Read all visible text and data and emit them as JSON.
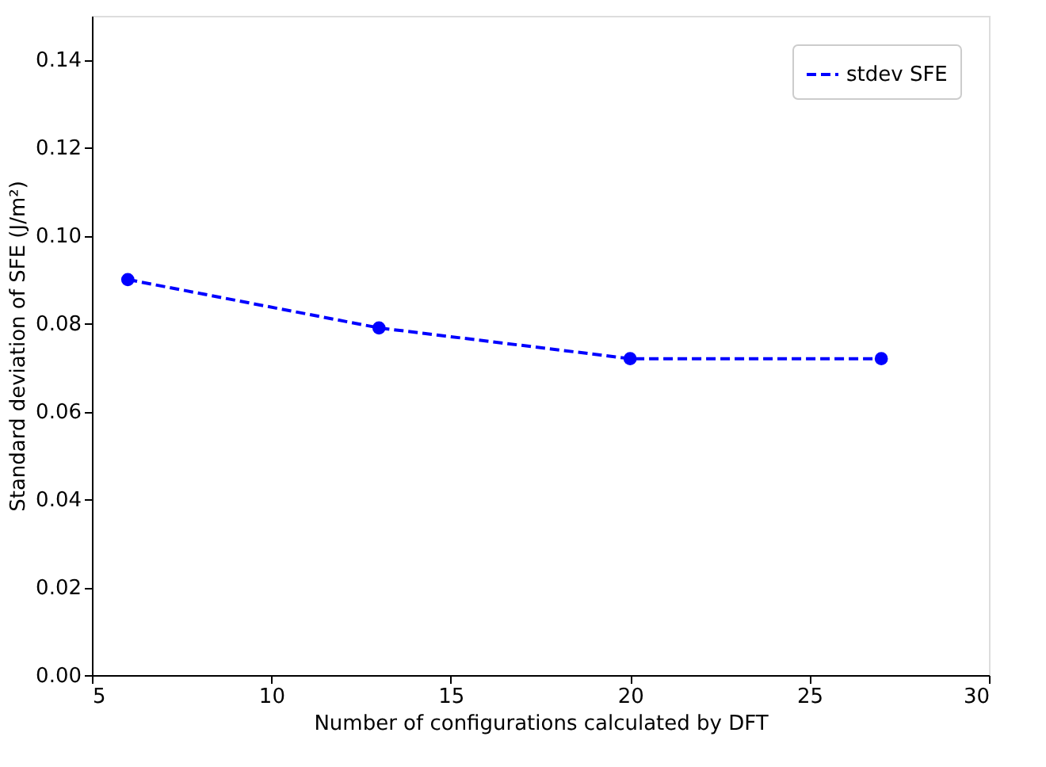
{
  "chart_data": {
    "type": "line",
    "xlabel": "Number of configurations calculated by DFT",
    "ylabel": "Standard deviation of SFE (J/m²)",
    "x": [
      6,
      13,
      20,
      27
    ],
    "series": [
      {
        "name": "stdev SFE",
        "color": "#0000ff",
        "values": [
          0.09,
          0.079,
          0.072,
          0.072
        ]
      }
    ],
    "xlim": [
      5,
      30
    ],
    "xticks": [
      5,
      10,
      15,
      20,
      25,
      30
    ],
    "ylim": [
      0,
      0.15
    ],
    "yticks": [
      {
        "value": 0,
        "label": "0.00"
      },
      {
        "value": 0.02,
        "label": "0.02"
      },
      {
        "value": 0.04,
        "label": "0.04"
      },
      {
        "value": 0.06,
        "label": "0.06"
      },
      {
        "value": 0.08,
        "label": "0.08"
      },
      {
        "value": 0.1,
        "label": "0.10"
      },
      {
        "value": 0.12,
        "label": "0.12"
      },
      {
        "value": 0.14,
        "label": "0.14"
      }
    ],
    "grid": false,
    "legend": "top right",
    "marker": "circle",
    "line_style": "dashed"
  }
}
